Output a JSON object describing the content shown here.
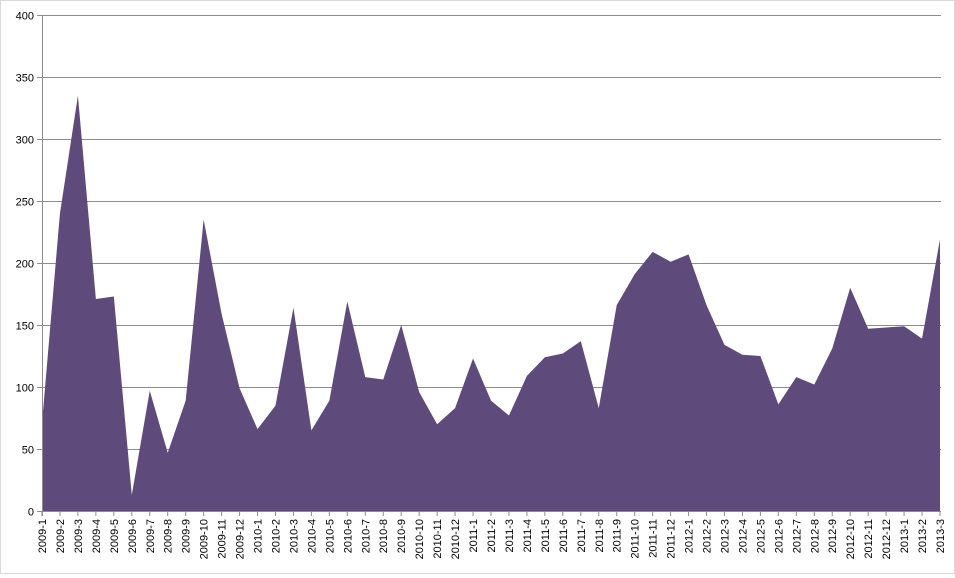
{
  "chart_data": {
    "type": "area",
    "title": "",
    "xlabel": "",
    "ylabel": "",
    "ylim": [
      0,
      400
    ],
    "yticks": [
      0,
      50,
      100,
      150,
      200,
      250,
      300,
      350,
      400
    ],
    "grid": true,
    "legend": "none",
    "fill_color": "#5f4a7c",
    "categories": [
      "2009-1",
      "2009-2",
      "2009-3",
      "2009-4",
      "2009-5",
      "2009-6",
      "2009-7",
      "2009-8",
      "2009-9",
      "2009-10",
      "2009-11",
      "2009-12",
      "2010-1",
      "2010-2",
      "2010-3",
      "2010-4",
      "2010-5",
      "2010-6",
      "2010-7",
      "2010-8",
      "2010-9",
      "2010-10",
      "2010-11",
      "2010-12",
      "2011-1",
      "2011-2",
      "2011-3",
      "2011-4",
      "2011-5",
      "2011-6",
      "2011-7",
      "2011-8",
      "2011-9",
      "2011-10",
      "2011-11",
      "2011-12",
      "2012-1",
      "2012-2",
      "2012-3",
      "2012-4",
      "2012-5",
      "2012-6",
      "2012-7",
      "2012-8",
      "2012-9",
      "2012-10",
      "2012-11",
      "2012-12",
      "2013-1",
      "2013-2",
      "2013-3"
    ],
    "values": [
      71,
      240,
      335,
      171,
      173,
      13,
      97,
      47,
      89,
      235,
      159,
      99,
      66,
      85,
      164,
      65,
      89,
      169,
      108,
      106,
      150,
      96,
      70,
      83,
      123,
      89,
      77,
      109,
      124,
      127,
      137,
      83,
      166,
      191,
      209,
      201,
      207,
      166,
      134,
      126,
      125,
      86,
      108,
      102,
      131,
      180,
      147,
      148,
      149,
      139,
      219
    ]
  }
}
